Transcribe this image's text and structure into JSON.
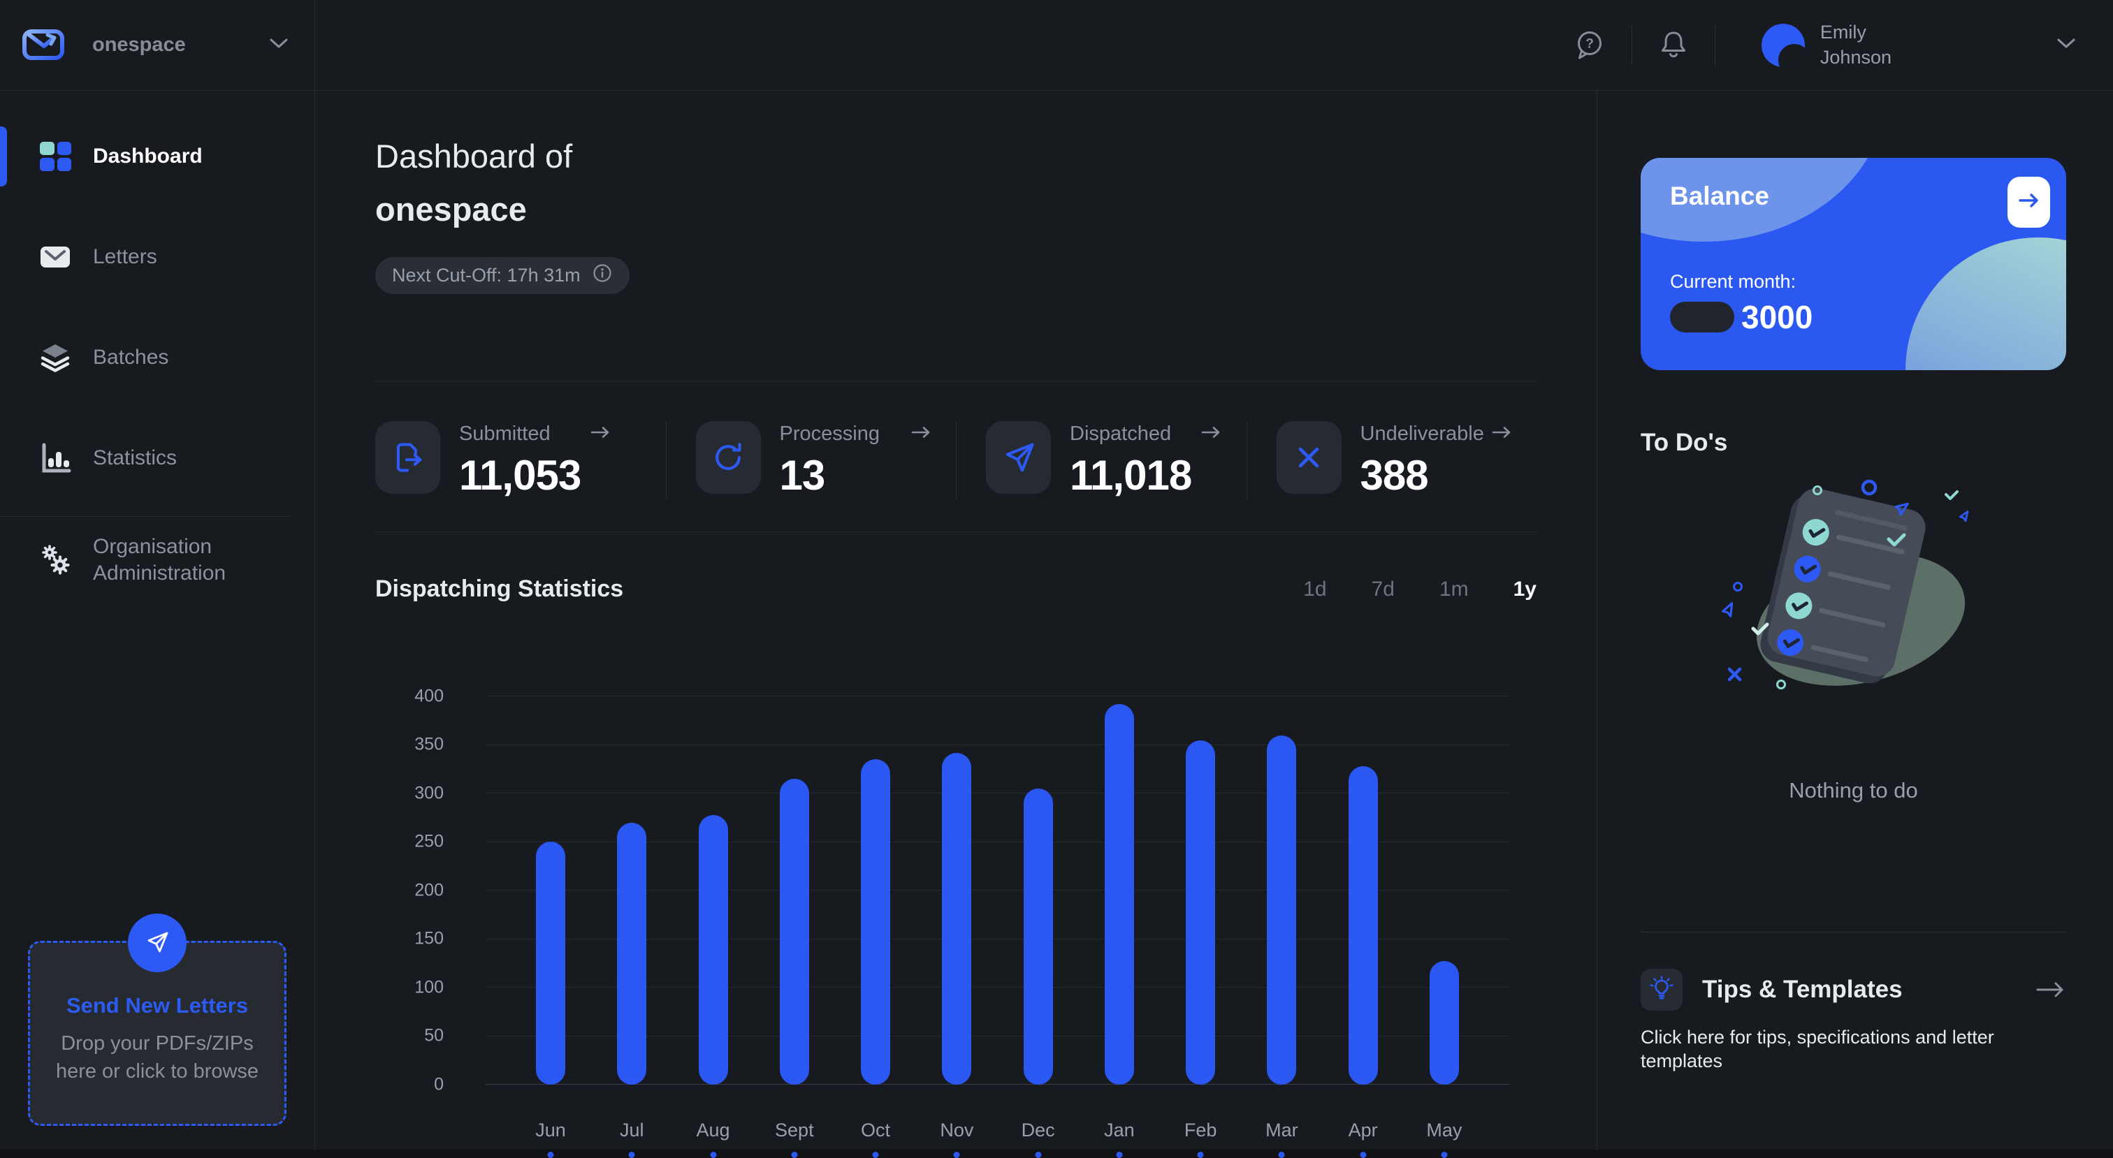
{
  "colors": {
    "background": "#171a1f",
    "accent": "#2b57f3",
    "accent_icon": "#2d5af5",
    "teal": "#8fd8d2",
    "text_muted": "#8b909a",
    "balance_card": "#2b58f0",
    "bar_color": "#2b57f3"
  },
  "topbar": {
    "org_name": "onespace",
    "user": {
      "first": "Emily",
      "last": "Johnson"
    }
  },
  "sidebar": {
    "items": [
      {
        "label": "Dashboard",
        "icon": "grid-icon",
        "active": true
      },
      {
        "label": "Letters",
        "icon": "envelope-icon",
        "active": false
      },
      {
        "label": "Batches",
        "icon": "layers-icon",
        "active": false
      },
      {
        "label": "Statistics",
        "icon": "bar-chart-icon",
        "active": false
      },
      {
        "label": "Organisation Administration",
        "icon": "gears-icon",
        "active": false
      }
    ],
    "dropzone": {
      "title": "Send New Letters",
      "body": "Drop your PDFs/ZIPs here or click to browse",
      "icon": "paper-plane-icon"
    }
  },
  "header": {
    "title_prefix": "Dashboard of",
    "title_org": "onespace",
    "cutoff_label": "Next Cut-Off: 17h 31m",
    "cutoff_icon": "info-icon"
  },
  "stats": {
    "items": [
      {
        "label": "Submitted",
        "value": "11,053",
        "icon": "document-export-icon"
      },
      {
        "label": "Processing",
        "value": "13",
        "icon": "refresh-icon"
      },
      {
        "label": "Dispatched",
        "value": "11,018",
        "icon": "paper-plane-icon"
      },
      {
        "label": "Undeliverable",
        "value": "388",
        "icon": "x-icon"
      }
    ]
  },
  "chart_data": {
    "type": "bar",
    "title": "Dispatching Statistics",
    "categories": [
      "Jun",
      "Jul",
      "Aug",
      "Sept",
      "Oct",
      "Nov",
      "Dec",
      "Jan",
      "Feb",
      "Mar",
      "Apr",
      "May"
    ],
    "values": [
      250,
      270,
      278,
      315,
      335,
      342,
      305,
      392,
      355,
      360,
      328,
      127
    ],
    "xlabel": "",
    "ylabel": "",
    "ylim": [
      0,
      400
    ],
    "ytick_step": 50,
    "grid": true,
    "legend": false,
    "bar_color": "#2b57f3",
    "ranges": [
      "1d",
      "7d",
      "1m",
      "1y"
    ],
    "active_range": "1y"
  },
  "right_panel": {
    "balance": {
      "title": "Balance",
      "month_label": "Current month:",
      "amount": "3000",
      "arrow_icon": "arrow-right-icon"
    },
    "todos": {
      "title": "To Do's",
      "empty_text": "Nothing to do"
    },
    "tips": {
      "title": "Tips & Templates",
      "body": "Click here for tips, specifications and letter templates",
      "icon": "lightbulb-icon",
      "arrow_icon": "arrow-right-icon"
    }
  }
}
